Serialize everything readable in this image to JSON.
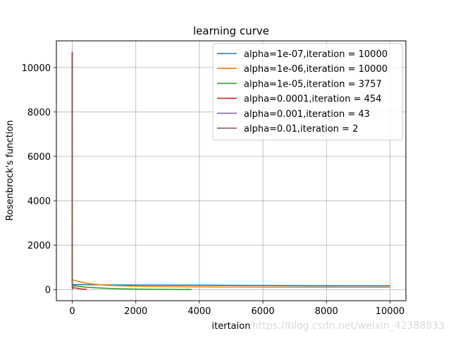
{
  "chart_data": {
    "type": "line",
    "title": "learning curve",
    "xlabel": "itertaion",
    "ylabel": "Rosenbrock's function",
    "xlim": [
      -500,
      10500
    ],
    "ylim": [
      -500,
      11200
    ],
    "xticks": [
      0,
      2000,
      4000,
      6000,
      8000,
      10000
    ],
    "yticks": [
      0,
      2000,
      4000,
      6000,
      8000,
      10000
    ],
    "grid": true,
    "legend_position": "top-right",
    "series": [
      {
        "name": "alpha=1e-07,iteration = 10000",
        "color": "#1f77b4",
        "x": [
          0,
          1,
          20,
          100,
          300,
          1000,
          2000,
          4000,
          6000,
          8000,
          10000
        ],
        "y": [
          10700,
          230,
          225,
          222,
          220,
          212,
          205,
          195,
          185,
          177,
          170
        ]
      },
      {
        "name": "alpha=1e-06,iteration = 10000",
        "color": "#ff7f0e",
        "x": [
          0,
          1,
          50,
          150,
          300,
          500,
          700,
          1000,
          1500,
          2000,
          3000,
          4000,
          6000,
          8000,
          10000
        ],
        "y": [
          10700,
          440,
          420,
          385,
          330,
          280,
          240,
          200,
          170,
          150,
          130,
          120,
          112,
          108,
          105
        ]
      },
      {
        "name": "alpha=1e-05,iteration = 3757",
        "color": "#2ca02c",
        "x": [
          0,
          1,
          50,
          200,
          500,
          1000,
          1500,
          2000,
          2500,
          3000,
          3500,
          3757
        ],
        "y": [
          10700,
          200,
          180,
          140,
          100,
          60,
          35,
          20,
          12,
          8,
          5,
          4
        ]
      },
      {
        "name": "alpha=0.0001,iteration = 454",
        "color": "#d62728",
        "x": [
          0,
          1,
          30,
          100,
          200,
          300,
          400,
          454
        ],
        "y": [
          10700,
          120,
          100,
          70,
          45,
          25,
          12,
          5
        ]
      },
      {
        "name": "alpha=0.001,iteration = 43",
        "color": "#9467bd",
        "x": [
          0,
          1,
          10,
          20,
          30,
          43
        ],
        "y": [
          10700,
          250,
          160,
          100,
          60,
          30
        ]
      },
      {
        "name": "alpha=0.01,iteration = 2",
        "color": "#8c564b",
        "x": [
          0,
          1,
          2
        ],
        "y": [
          10700,
          380,
          10
        ]
      }
    ]
  },
  "watermark": "https://blog.csdn.net/weixin_42388833"
}
